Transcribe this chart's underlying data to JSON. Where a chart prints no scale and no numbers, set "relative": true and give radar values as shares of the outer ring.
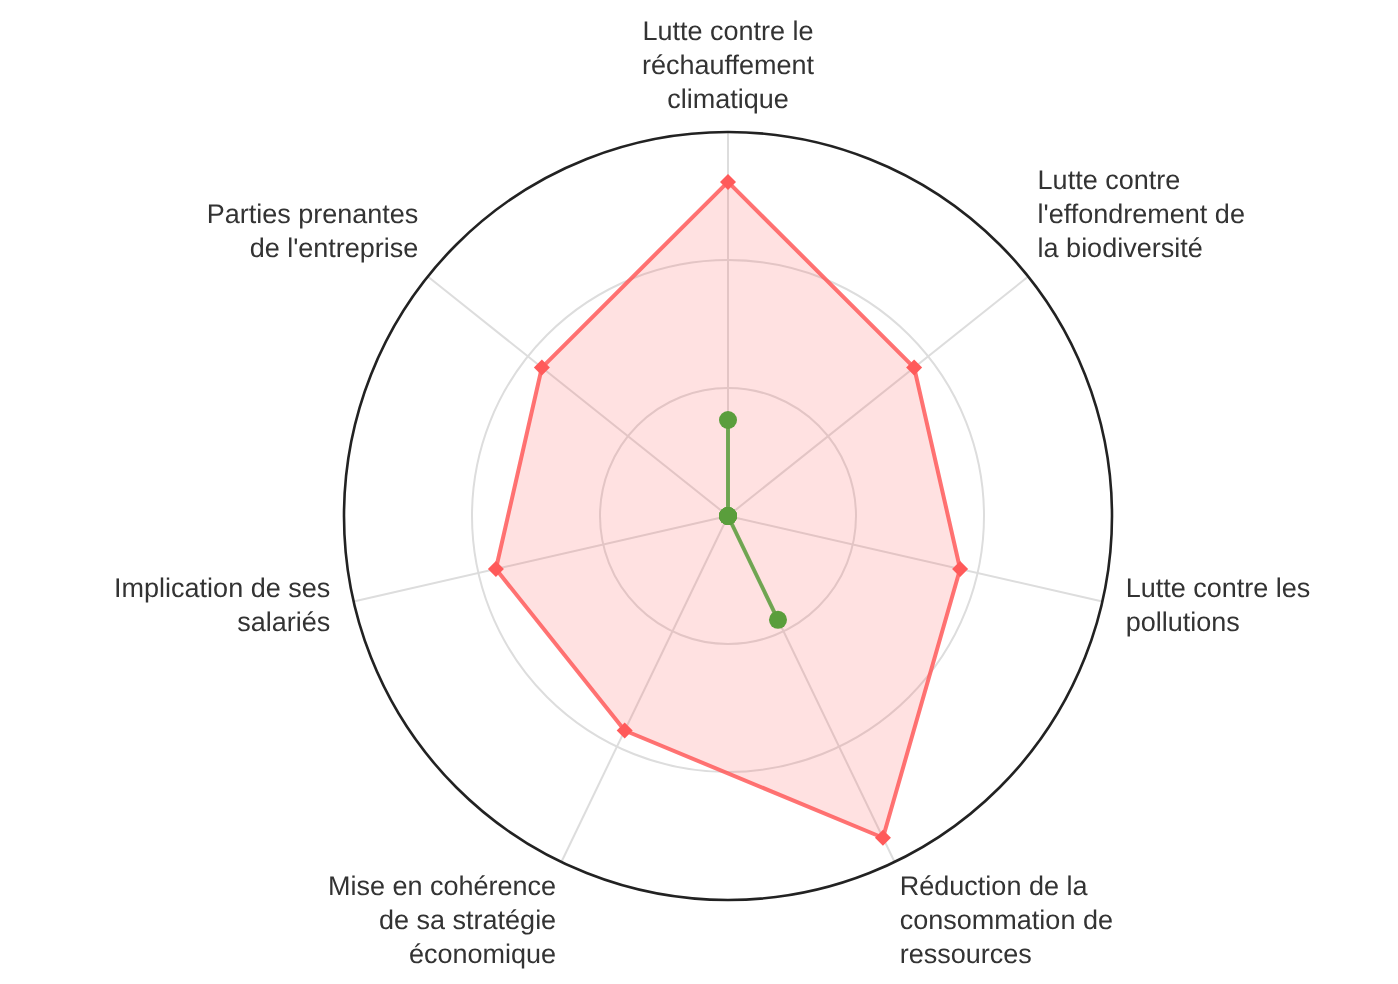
{
  "chart_data": {
    "type": "radar",
    "relative": true,
    "grid": true,
    "categories": [
      "Lutte contre le réchauffement climatique",
      "Lutte contre l'effondrement de la biodiversité",
      "Lutte contre les pollutions",
      "Réduction de la consommation de ressources",
      "Mise en cohérence de sa stratégie économique",
      "Implication de ses salariés",
      "Parties prenantes de l'entreprise"
    ],
    "series": [
      {
        "color": "#ff5a5a",
        "marker": "diamond",
        "values": [
          0.87,
          0.62,
          0.62,
          0.93,
          0.62,
          0.62,
          0.62
        ]
      },
      {
        "color": "#5a9e3c",
        "marker": "circle",
        "values": [
          0.25,
          0,
          0,
          0.3,
          0,
          0,
          0
        ]
      }
    ]
  }
}
